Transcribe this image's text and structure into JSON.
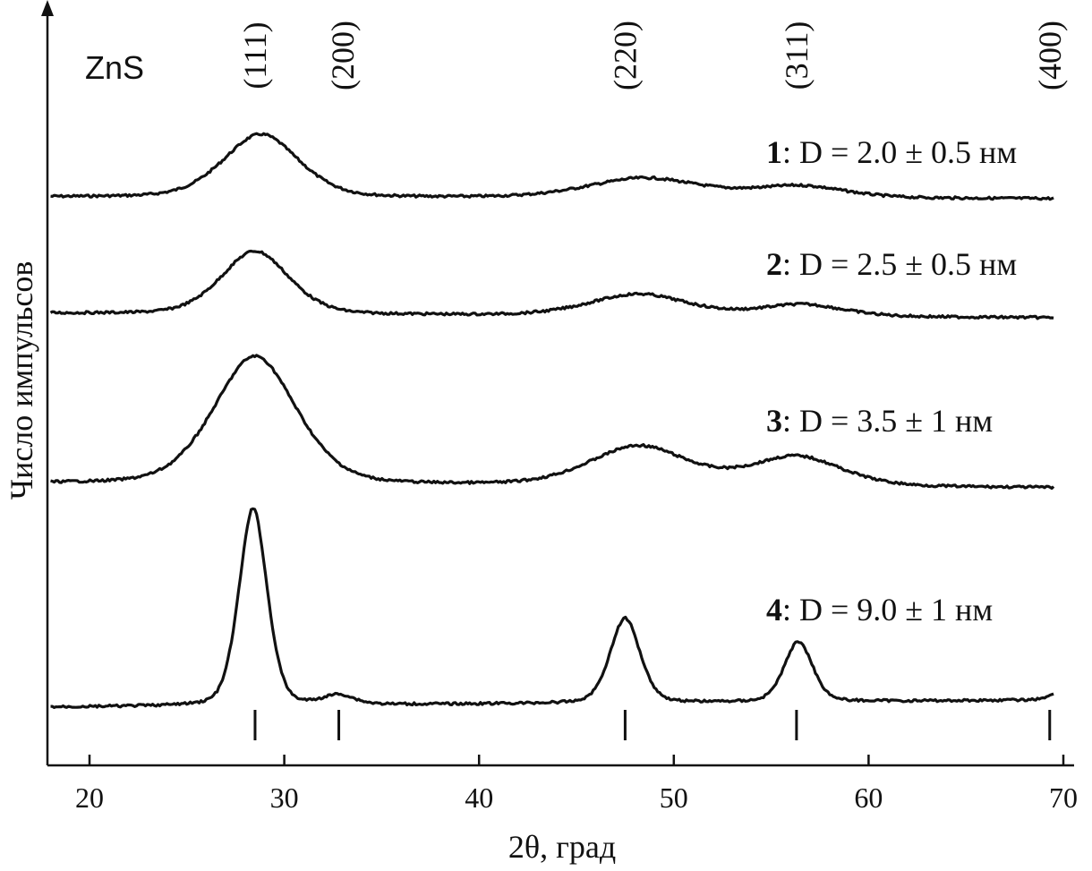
{
  "chart_data": {
    "type": "line",
    "title": "",
    "material_label": "ZnS",
    "xlabel": "2θ, град",
    "ylabel": "Число импульсов",
    "xlim": [
      18,
      70
    ],
    "xticks": [
      20,
      30,
      40,
      50,
      60,
      70
    ],
    "grid": false,
    "y_axis_ticks": false,
    "reflections": [
      {
        "hkl": "(111)",
        "x": 28.5
      },
      {
        "hkl": "(200)",
        "x": 33.0
      },
      {
        "hkl": "(220)",
        "x": 47.5
      },
      {
        "hkl": "(311)",
        "x": 56.3
      },
      {
        "hkl": "(400)",
        "x": 69.3
      }
    ],
    "reference_lines_x": [
      28.5,
      32.8,
      47.5,
      56.3,
      69.3
    ],
    "series": [
      {
        "id": "1",
        "label_num": "1",
        "label_rest": ": D = 2.0 ± 0.5 нм",
        "baseline": 0,
        "peaks": [
          {
            "center": 28.8,
            "height": 3.2,
            "width": 2.0
          },
          {
            "center": 48.5,
            "height": 1.0,
            "width": 3.0
          },
          {
            "center": 56.5,
            "height": 0.6,
            "width": 2.4
          }
        ]
      },
      {
        "id": "2",
        "label_num": "2",
        "label_rest": ": D = 2.5 ± 0.5 нм",
        "baseline": 0,
        "peaks": [
          {
            "center": 28.5,
            "height": 3.2,
            "width": 1.8
          },
          {
            "center": 48.2,
            "height": 1.1,
            "width": 2.6
          },
          {
            "center": 56.6,
            "height": 0.6,
            "width": 2.2
          }
        ]
      },
      {
        "id": "3",
        "label_num": "3",
        "label_rest": ": D = 3.5 ± 1 нм",
        "baseline": 0,
        "peaks": [
          {
            "center": 28.5,
            "height": 6.5,
            "width": 2.2
          },
          {
            "center": 48.2,
            "height": 2.0,
            "width": 2.6
          },
          {
            "center": 56.3,
            "height": 1.5,
            "width": 2.4
          }
        ]
      },
      {
        "id": "4",
        "label_num": "4",
        "label_rest": ": D = 9.0 ± 1 нм",
        "baseline": 0,
        "peaks": [
          {
            "center": 28.4,
            "height": 10.5,
            "width": 0.75
          },
          {
            "center": 32.8,
            "height": 0.5,
            "width": 0.8
          },
          {
            "center": 47.5,
            "height": 4.5,
            "width": 0.8
          },
          {
            "center": 56.4,
            "height": 3.2,
            "width": 0.75
          },
          {
            "center": 70.0,
            "height": 0.5,
            "width": 0.6
          }
        ]
      }
    ]
  }
}
